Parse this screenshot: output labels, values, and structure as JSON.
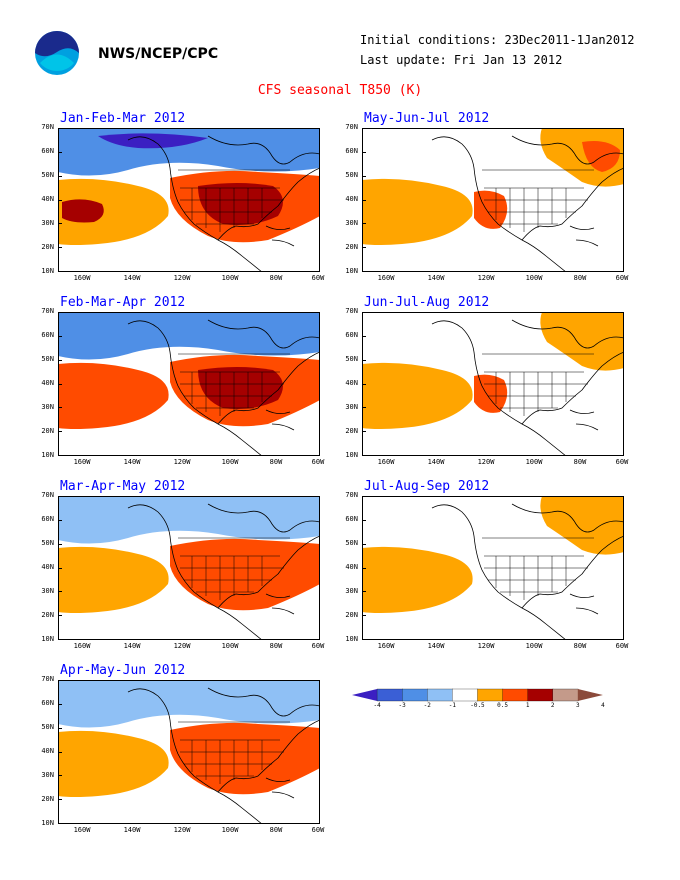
{
  "header": {
    "agency": "NWS/NCEP/CPC",
    "initial_conditions": "Initial conditions: 23Dec2011-1Jan2012",
    "last_update": "Last update: Fri Jan 13 2012",
    "title": "CFS seasonal T850 (K)"
  },
  "axes": {
    "lat_labels": [
      "70N",
      "60N",
      "50N",
      "40N",
      "30N",
      "20N",
      "10N"
    ],
    "lon_labels": [
      "160W",
      "140W",
      "120W",
      "100W",
      "80W",
      "60W"
    ]
  },
  "panels": [
    {
      "season": "Jan-Feb-Mar 2012",
      "anomalies": [
        {
          "region": "northern-band-neg",
          "level": -2
        },
        {
          "region": "north-pole-deep-neg",
          "level": -3
        },
        {
          "region": "pacific-subtropical-pos",
          "level": 1
        },
        {
          "region": "pacific-core-pos",
          "level": 3
        },
        {
          "region": "conus-pos",
          "level": 2
        },
        {
          "region": "conus-core-pos",
          "level": 3
        }
      ]
    },
    {
      "season": "May-Jun-Jul 2012",
      "anomalies": [
        {
          "region": "pacific-subtropical-pos",
          "level": 1
        },
        {
          "region": "southwest-pos",
          "level": 2
        },
        {
          "region": "northeast-pos",
          "level": 1
        },
        {
          "region": "north-atlantic-pos",
          "level": 2
        }
      ]
    },
    {
      "season": "Feb-Mar-Apr 2012",
      "anomalies": [
        {
          "region": "northern-band-neg",
          "level": -2
        },
        {
          "region": "pacific-subtropical-pos",
          "level": 2
        },
        {
          "region": "conus-pos",
          "level": 2
        },
        {
          "region": "conus-core-pos",
          "level": 3
        }
      ]
    },
    {
      "season": "Jun-Jul-Aug 2012",
      "anomalies": [
        {
          "region": "pacific-subtropical-pos",
          "level": 1
        },
        {
          "region": "southwest-pos",
          "level": 2
        },
        {
          "region": "northeast-pos",
          "level": 1
        }
      ]
    },
    {
      "season": "Mar-Apr-May 2012",
      "anomalies": [
        {
          "region": "northern-band-neg",
          "level": -1
        },
        {
          "region": "pacific-subtropical-pos",
          "level": 1
        },
        {
          "region": "conus-pos",
          "level": 2
        }
      ]
    },
    {
      "season": "Jul-Aug-Sep 2012",
      "anomalies": [
        {
          "region": "pacific-subtropical-pos",
          "level": 1
        },
        {
          "region": "northeast-pos",
          "level": 1
        }
      ]
    },
    {
      "season": "Apr-May-Jun 2012",
      "anomalies": [
        {
          "region": "northern-band-neg",
          "level": -1
        },
        {
          "region": "pacific-subtropical-pos",
          "level": 1
        },
        {
          "region": "conus-pos",
          "level": 2
        }
      ]
    }
  ],
  "colorbar": {
    "labels": [
      "-4",
      "-3",
      "-2",
      "-1",
      "-0.5",
      "0.5",
      "1",
      "2",
      "3",
      "4"
    ],
    "colors": [
      "#3b1fc2",
      "#3a5fd6",
      "#4f8fe6",
      "#8fc0f5",
      "#ffffff",
      "#ffa500",
      "#ff4b00",
      "#a50000",
      "#c49a8a",
      "#8b4a3a"
    ]
  },
  "level_colors": {
    "-3": "#3b1fc2",
    "-2": "#4f8fe6",
    "-1": "#8fc0f5",
    "1": "#ffa500",
    "2": "#ff4b00",
    "3": "#a50000"
  }
}
